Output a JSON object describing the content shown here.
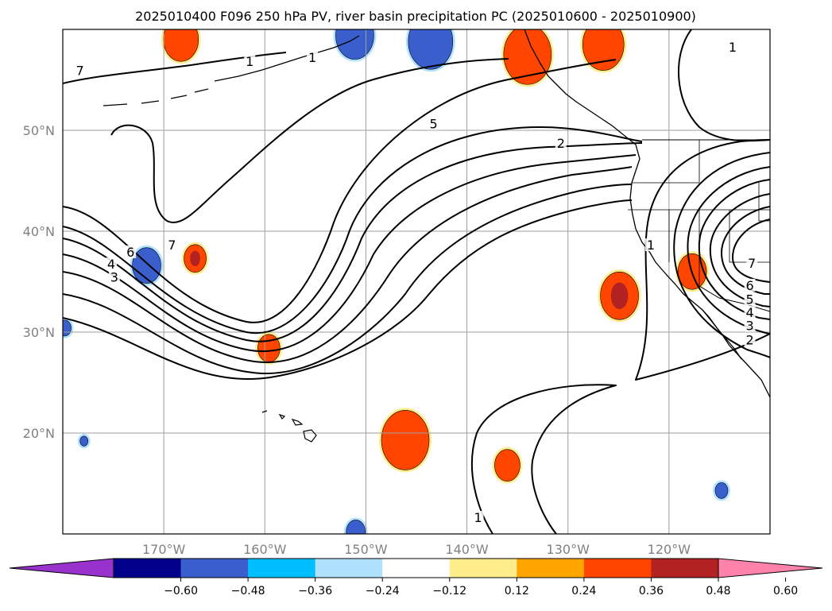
{
  "chart_data": {
    "type": "contour-map",
    "title": "2025010400 F096 250 hPa PV, river basin precipitation PC (2025010600 - 2025010900)",
    "projection": "PlateCarree",
    "extent": {
      "lon": [
        -180,
        -110
      ],
      "lat": [
        10,
        60
      ]
    },
    "grid": true,
    "xticks": [
      {
        "lon": -170,
        "label": "170°W"
      },
      {
        "lon": -160,
        "label": "160°W"
      },
      {
        "lon": -150,
        "label": "150°W"
      },
      {
        "lon": -140,
        "label": "140°W"
      },
      {
        "lon": -130,
        "label": "130°W"
      },
      {
        "lon": -120,
        "label": "120°W"
      }
    ],
    "yticks": [
      {
        "lat": 20,
        "label": "20°N"
      },
      {
        "lat": 30,
        "label": "30°N"
      },
      {
        "lat": 40,
        "label": "40°N"
      },
      {
        "lat": 50,
        "label": "50°N"
      }
    ],
    "colorbar": {
      "extend": "both",
      "colors": [
        "#9932cc",
        "#00008b",
        "#3a5fcd",
        "#00bfff",
        "#b0e2ff",
        "#ffffff",
        "#ffec8b",
        "#ffa500",
        "#ff4500",
        "#b22222",
        "#ff82ab"
      ],
      "ticks": [
        "−0.60",
        "−0.48",
        "−0.36",
        "−0.24",
        "−0.12",
        "0.12",
        "0.24",
        "0.36",
        "0.48",
        "0.60"
      ]
    },
    "pv_contour_labels": [
      {
        "text": "7",
        "lon": -178.3,
        "lat": 55.8
      },
      {
        "text": "1",
        "lon": -161.5,
        "lat": 56.7
      },
      {
        "text": "1",
        "lon": -155.3,
        "lat": 57.1
      },
      {
        "text": "1",
        "lon": -113.7,
        "lat": 58.1
      },
      {
        "text": "5",
        "lon": -143.3,
        "lat": 50.5
      },
      {
        "text": "2",
        "lon": -130.7,
        "lat": 48.6
      },
      {
        "text": "7",
        "lon": -169.2,
        "lat": 38.5
      },
      {
        "text": "6",
        "lon": -173.3,
        "lat": 37.8
      },
      {
        "text": "4",
        "lon": -175.2,
        "lat": 36.6
      },
      {
        "text": "3",
        "lon": -174.9,
        "lat": 35.3
      },
      {
        "text": "1",
        "lon": -121.8,
        "lat": 38.5
      },
      {
        "text": "7",
        "lon": -111.8,
        "lat": 36.7
      },
      {
        "text": "6",
        "lon": -112.0,
        "lat": 34.5
      },
      {
        "text": "5",
        "lon": -112.0,
        "lat": 33.1
      },
      {
        "text": "4",
        "lon": -112.0,
        "lat": 31.8
      },
      {
        "text": "3",
        "lon": -112.0,
        "lat": 30.5
      },
      {
        "text": "2",
        "lon": -112.0,
        "lat": 29.1
      },
      {
        "text": "1",
        "lon": -138.9,
        "lat": 11.5
      }
    ],
    "precip_pc_anomalies": [
      {
        "sign": "+",
        "lon": -168.3,
        "lat": 59.0,
        "peak": 0.4
      },
      {
        "sign": "+",
        "lon": -134.0,
        "lat": 57.5,
        "peak": 0.45
      },
      {
        "sign": "+",
        "lon": -126.5,
        "lat": 58.5,
        "peak": 0.4
      },
      {
        "sign": "+",
        "lon": -166.9,
        "lat": 37.3,
        "peak": 0.5
      },
      {
        "sign": "+",
        "lon": -159.6,
        "lat": 28.4,
        "peak": 0.4
      },
      {
        "sign": "+",
        "lon": -124.9,
        "lat": 33.6,
        "peak": 0.55
      },
      {
        "sign": "+",
        "lon": -117.7,
        "lat": 36.0,
        "peak": 0.4
      },
      {
        "sign": "+",
        "lon": -146.1,
        "lat": 19.3,
        "peak": 0.4
      },
      {
        "sign": "+",
        "lon": -136.0,
        "lat": 16.8,
        "peak": 0.4
      },
      {
        "sign": "−",
        "lon": -151.1,
        "lat": 59.4,
        "peak": -0.4
      },
      {
        "sign": "−",
        "lon": -143.6,
        "lat": 58.8,
        "peak": -0.45
      },
      {
        "sign": "−",
        "lon": -171.7,
        "lat": 36.6,
        "peak": -0.4
      },
      {
        "sign": "−",
        "lon": -114.8,
        "lat": 14.3,
        "peak": -0.3
      },
      {
        "sign": "−",
        "lon": -179.8,
        "lat": 30.4,
        "peak": -0.3
      },
      {
        "sign": "−",
        "lon": -177.9,
        "lat": 19.2,
        "peak": -0.25
      },
      {
        "sign": "−",
        "lon": -151.0,
        "lat": 10.2,
        "peak": -0.3
      }
    ]
  }
}
